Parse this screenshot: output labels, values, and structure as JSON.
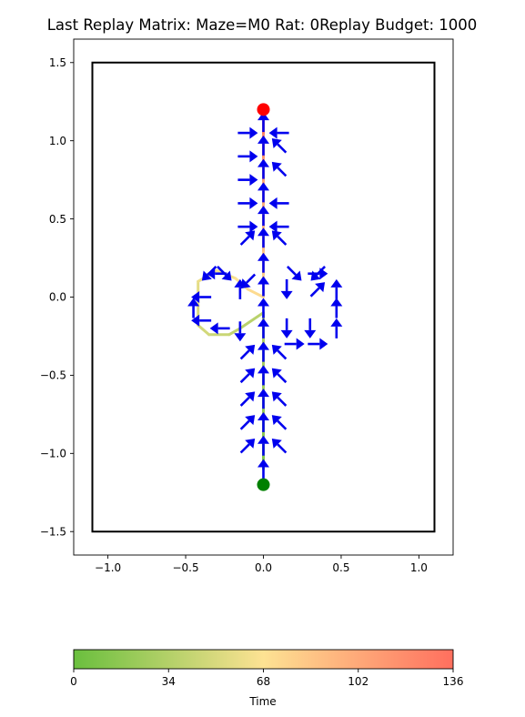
{
  "chart_data": {
    "type": "line",
    "title": "Last Replay Matrix: Maze=M0 Rat: 0Replay Budget: 1000",
    "xlim": [
      -1.22,
      1.22
    ],
    "ylim": [
      -1.65,
      1.65
    ],
    "xticks": [
      -1.0,
      -0.5,
      0.0,
      0.5,
      1.0
    ],
    "xtick_labels": [
      "−1.0",
      "−0.5",
      "0.0",
      "0.5",
      "1.0"
    ],
    "yticks": [
      -1.5,
      -1.0,
      -0.5,
      0.0,
      0.5,
      1.0,
      1.5
    ],
    "ytick_labels": [
      "−1.5",
      "−1.0",
      "−0.5",
      "0.0",
      "0.5",
      "1.0",
      "1.5"
    ],
    "grid": false,
    "boundary": [
      [
        -1.1,
        -1.5
      ],
      [
        1.1,
        -1.5
      ],
      [
        1.1,
        1.5
      ],
      [
        -1.1,
        1.5
      ]
    ],
    "start": {
      "x": 0.0,
      "y": -1.2,
      "color": "#008000"
    },
    "goal": {
      "x": 0.0,
      "y": 1.2,
      "color": "#ff0000"
    },
    "arrow_color": "#0000ee",
    "trajectory": [
      {
        "x": 0.0,
        "y": -1.1,
        "t": 8
      },
      {
        "x": 0.0,
        "y": -0.95,
        "t": 14
      },
      {
        "x": 0.0,
        "y": -0.8,
        "t": 18
      },
      {
        "x": 0.0,
        "y": -0.65,
        "t": 22
      },
      {
        "x": 0.0,
        "y": -0.5,
        "t": 26
      },
      {
        "x": 0.0,
        "y": -0.35,
        "t": 30
      },
      {
        "x": 0.0,
        "y": -0.2,
        "t": 33
      },
      {
        "x": 0.0,
        "y": -0.1,
        "t": 35
      },
      {
        "x": -0.15,
        "y": -0.2,
        "t": 38
      },
      {
        "x": -0.22,
        "y": -0.24,
        "t": 42
      },
      {
        "x": -0.35,
        "y": -0.24,
        "t": 46
      },
      {
        "x": -0.42,
        "y": -0.18,
        "t": 50
      },
      {
        "x": -0.42,
        "y": -0.05,
        "t": 54
      },
      {
        "x": -0.42,
        "y": 0.1,
        "t": 58
      },
      {
        "x": -0.3,
        "y": 0.17,
        "t": 62
      },
      {
        "x": -0.18,
        "y": 0.12,
        "t": 66
      },
      {
        "x": -0.1,
        "y": 0.05,
        "t": 70
      },
      {
        "x": 0.0,
        "y": 0.0,
        "t": 74
      },
      {
        "x": 0.0,
        "y": 0.15,
        "t": 80
      },
      {
        "x": 0.0,
        "y": 0.3,
        "t": 86
      },
      {
        "x": 0.0,
        "y": 0.45,
        "t": 92
      },
      {
        "x": 0.0,
        "y": 0.6,
        "t": 98
      },
      {
        "x": 0.0,
        "y": 0.75,
        "t": 104
      },
      {
        "x": 0.0,
        "y": 0.9,
        "t": 112
      },
      {
        "x": 0.0,
        "y": 1.05,
        "t": 122
      },
      {
        "x": 0.0,
        "y": 1.15,
        "t": 134
      }
    ],
    "arrows": [
      {
        "x": 0.0,
        "y": -1.1,
        "dx": 0,
        "dy": 1
      },
      {
        "x": 0.0,
        "y": -0.95,
        "dx": 0,
        "dy": 1
      },
      {
        "x": -0.1,
        "y": -0.95,
        "dx": 1,
        "dy": 1
      },
      {
        "x": 0.1,
        "y": -0.95,
        "dx": -1,
        "dy": 1
      },
      {
        "x": 0.0,
        "y": -0.8,
        "dx": 0,
        "dy": 1
      },
      {
        "x": -0.1,
        "y": -0.8,
        "dx": 1,
        "dy": 1
      },
      {
        "x": 0.1,
        "y": -0.8,
        "dx": -1,
        "dy": 1
      },
      {
        "x": 0.0,
        "y": -0.65,
        "dx": 0,
        "dy": 1
      },
      {
        "x": -0.1,
        "y": -0.65,
        "dx": 1,
        "dy": 1
      },
      {
        "x": 0.1,
        "y": -0.65,
        "dx": -1,
        "dy": 1
      },
      {
        "x": 0.0,
        "y": -0.5,
        "dx": 0,
        "dy": 1
      },
      {
        "x": -0.1,
        "y": -0.5,
        "dx": 1,
        "dy": 1
      },
      {
        "x": 0.1,
        "y": -0.5,
        "dx": -1,
        "dy": 1
      },
      {
        "x": 0.0,
        "y": -0.35,
        "dx": 0,
        "dy": 1
      },
      {
        "x": -0.1,
        "y": -0.35,
        "dx": 1,
        "dy": 1
      },
      {
        "x": 0.1,
        "y": -0.35,
        "dx": -1,
        "dy": 1
      },
      {
        "x": 0.0,
        "y": -0.2,
        "dx": 0,
        "dy": 1
      },
      {
        "x": 0.0,
        "y": -0.07,
        "dx": 0,
        "dy": 1
      },
      {
        "x": 0.0,
        "y": 0.07,
        "dx": 0,
        "dy": 1
      },
      {
        "x": 0.0,
        "y": 0.22,
        "dx": 0,
        "dy": 1
      },
      {
        "x": 0.0,
        "y": 0.38,
        "dx": 0,
        "dy": 1
      },
      {
        "x": -0.1,
        "y": 0.38,
        "dx": 1,
        "dy": 1
      },
      {
        "x": 0.1,
        "y": 0.38,
        "dx": -1,
        "dy": 1
      },
      {
        "x": 0.0,
        "y": 0.52,
        "dx": 0,
        "dy": 1
      },
      {
        "x": -0.1,
        "y": 0.45,
        "dx": 1,
        "dy": 0
      },
      {
        "x": 0.1,
        "y": 0.45,
        "dx": -1,
        "dy": 0
      },
      {
        "x": 0.0,
        "y": 0.67,
        "dx": 0,
        "dy": 1
      },
      {
        "x": -0.1,
        "y": 0.6,
        "dx": 1,
        "dy": 0
      },
      {
        "x": 0.1,
        "y": 0.6,
        "dx": -1,
        "dy": 0
      },
      {
        "x": 0.0,
        "y": 0.82,
        "dx": 0,
        "dy": 1
      },
      {
        "x": -0.1,
        "y": 0.75,
        "dx": 1,
        "dy": 0
      },
      {
        "x": 0.1,
        "y": 0.82,
        "dx": -1,
        "dy": 1
      },
      {
        "x": 0.0,
        "y": 0.97,
        "dx": 0,
        "dy": 1
      },
      {
        "x": -0.1,
        "y": 0.9,
        "dx": 1,
        "dy": 0
      },
      {
        "x": 0.1,
        "y": 0.97,
        "dx": -1,
        "dy": 1
      },
      {
        "x": 0.0,
        "y": 1.12,
        "dx": 0,
        "dy": 1
      },
      {
        "x": -0.1,
        "y": 1.05,
        "dx": 1,
        "dy": 0
      },
      {
        "x": 0.1,
        "y": 1.05,
        "dx": -1,
        "dy": 0
      },
      {
        "x": -0.45,
        "y": -0.07,
        "dx": 0,
        "dy": 1
      },
      {
        "x": -0.4,
        "y": 0.0,
        "dx": -1,
        "dy": 0
      },
      {
        "x": -0.4,
        "y": -0.15,
        "dx": -1,
        "dy": 0
      },
      {
        "x": -0.3,
        "y": 0.15,
        "dx": -1,
        "dy": 0
      },
      {
        "x": -0.35,
        "y": 0.15,
        "dx": -1,
        "dy": -1
      },
      {
        "x": -0.25,
        "y": 0.15,
        "dx": 1,
        "dy": -1
      },
      {
        "x": -0.15,
        "y": 0.05,
        "dx": 0,
        "dy": 1
      },
      {
        "x": -0.1,
        "y": 0.1,
        "dx": -1,
        "dy": -1
      },
      {
        "x": -0.28,
        "y": -0.2,
        "dx": -1,
        "dy": 0
      },
      {
        "x": -0.15,
        "y": -0.22,
        "dx": 0,
        "dy": -1
      },
      {
        "x": 0.15,
        "y": 0.05,
        "dx": 0,
        "dy": -1
      },
      {
        "x": 0.2,
        "y": 0.15,
        "dx": 1,
        "dy": -1
      },
      {
        "x": 0.35,
        "y": 0.15,
        "dx": -1,
        "dy": -1
      },
      {
        "x": 0.35,
        "y": 0.15,
        "dx": 1,
        "dy": 0
      },
      {
        "x": 0.35,
        "y": 0.05,
        "dx": 1,
        "dy": 1
      },
      {
        "x": 0.47,
        "y": 0.05,
        "dx": 0,
        "dy": 1
      },
      {
        "x": 0.47,
        "y": -0.07,
        "dx": 0,
        "dy": 1
      },
      {
        "x": 0.47,
        "y": -0.2,
        "dx": 0,
        "dy": 1
      },
      {
        "x": 0.15,
        "y": -0.2,
        "dx": 0,
        "dy": -1
      },
      {
        "x": 0.3,
        "y": -0.2,
        "dx": 0,
        "dy": -1
      },
      {
        "x": 0.2,
        "y": -0.3,
        "dx": 1,
        "dy": 0
      },
      {
        "x": 0.35,
        "y": -0.3,
        "dx": 1,
        "dy": 0
      }
    ],
    "colorbar": {
      "label": "Time",
      "min": 0,
      "max": 136,
      "ticks": [
        0,
        34,
        68,
        102,
        136
      ],
      "tick_labels": [
        "0",
        "34",
        "68",
        "102",
        "136"
      ],
      "colors": [
        "#6abf3e",
        "#fde293",
        "#ff6f5e"
      ]
    }
  }
}
